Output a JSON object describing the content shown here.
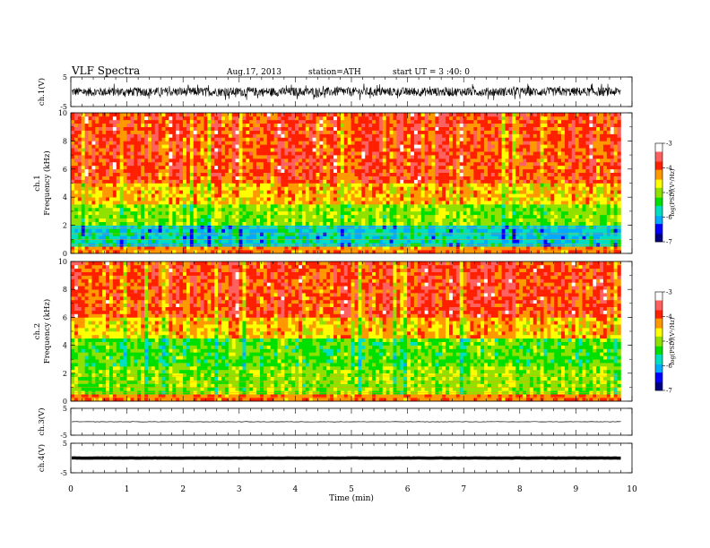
{
  "header": {
    "title": "VLF  Spectra",
    "date": "Aug.17, 2013",
    "station": "station=ATH",
    "start": "start  UT  =   3  :40: 0"
  },
  "colors": {
    "colormap": [
      "#000080",
      "#0000ff",
      "#00aaff",
      "#00e0c0",
      "#00e000",
      "#90e000",
      "#ffff00",
      "#ff9900",
      "#ff2000",
      "#ff6060",
      "#ffffff"
    ],
    "trace": "#000000"
  },
  "chart_data": [
    {
      "type": "line",
      "panel": "ch1-waveform",
      "ylabel": "ch.1(V)",
      "ylim": [
        -5,
        5
      ],
      "yticks": [
        "5",
        "-5"
      ],
      "xlim": [
        0,
        10
      ],
      "series_desc": "noisy broadband waveform, amplitude about ±1.5 V"
    },
    {
      "type": "heatmap",
      "panel": "ch1-spectrogram",
      "ylabel_top": "ch.1",
      "ylabel": "Frequency  (kHz)",
      "ylim": [
        0,
        10
      ],
      "yticks": [
        "10",
        "8",
        "6",
        "4",
        "2",
        "0"
      ],
      "colorbar": {
        "label": "log(PSD)(V²/Hz)",
        "ticks": [
          "-3",
          "-4",
          "-5",
          "-6",
          "-7"
        ],
        "range": [
          -7,
          -3
        ]
      },
      "bands": [
        {
          "from": 0,
          "to": 2.0,
          "level": -5.8
        },
        {
          "from": 2.0,
          "to": 3.5,
          "level": -5.0
        },
        {
          "from": 3.5,
          "to": 5.0,
          "level": -4.4
        },
        {
          "from": 5.0,
          "to": 10.0,
          "level": -3.9
        }
      ]
    },
    {
      "type": "heatmap",
      "panel": "ch2-spectrogram",
      "ylabel_top": "ch.2",
      "ylabel": "Frequency  (kHz)",
      "ylim": [
        0,
        10
      ],
      "yticks": [
        "10",
        "8",
        "6",
        "4",
        "2",
        "0"
      ],
      "colorbar": {
        "label": "log(PSD)(V²/Hz)",
        "ticks": [
          "-3",
          "-4",
          "-5",
          "-6",
          "-7"
        ],
        "range": [
          -7,
          -3
        ]
      },
      "bands": [
        {
          "from": 0,
          "to": 2.5,
          "level": -5.0
        },
        {
          "from": 2.5,
          "to": 4.5,
          "level": -5.2
        },
        {
          "from": 4.5,
          "to": 6.0,
          "level": -4.4
        },
        {
          "from": 6.0,
          "to": 10.0,
          "level": -3.9
        }
      ]
    },
    {
      "type": "line",
      "panel": "ch3-waveform",
      "ylabel": "ch.3(V)",
      "ylim": [
        -5,
        5
      ],
      "yticks": [
        "5",
        "-5"
      ],
      "series_desc": "flat trace near 0 V"
    },
    {
      "type": "line",
      "panel": "ch4-waveform",
      "ylabel": "ch.4(V)",
      "ylim": [
        -5,
        5
      ],
      "yticks": [
        "5",
        "-5"
      ],
      "series_desc": "thick flat trace near 0 V"
    }
  ],
  "xaxis": {
    "label": "Time  (min)",
    "ticks": [
      "0",
      "1",
      "2",
      "3",
      "4",
      "5",
      "6",
      "7",
      "8",
      "9",
      "10"
    ],
    "range": [
      0,
      10
    ],
    "data_end": 9.8
  }
}
